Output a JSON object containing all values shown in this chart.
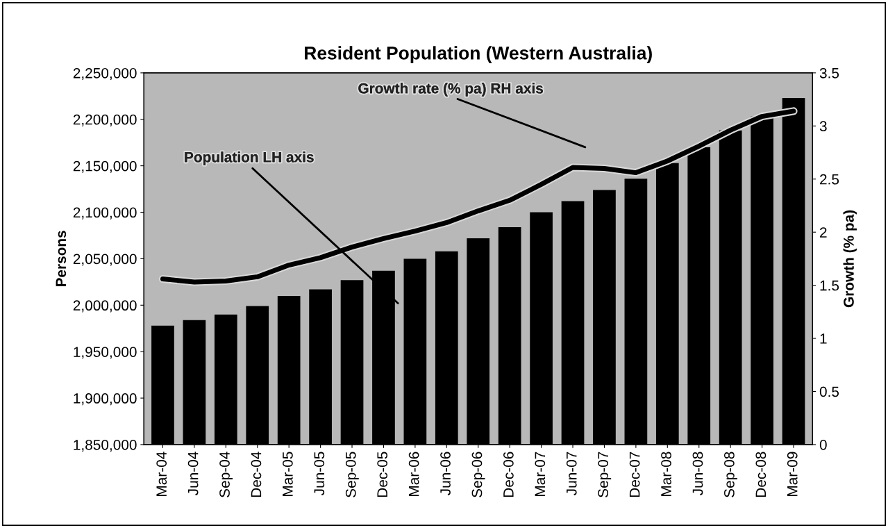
{
  "chart_data": {
    "type": "bar",
    "title": "Resident Population (Western Australia)",
    "ylabel": "Persons",
    "y2label": "Growth (% pa)",
    "categories": [
      "Mar-04",
      "Jun-04",
      "Sep-04",
      "Dec-04",
      "Mar-05",
      "Jun-05",
      "Sep-05",
      "Dec-05",
      "Mar-06",
      "Jun-06",
      "Sep-06",
      "Dec-06",
      "Mar-07",
      "Jun-07",
      "Sep-07",
      "Dec-07",
      "Mar-08",
      "Jun-08",
      "Sep-08",
      "Dec-08",
      "Mar-09"
    ],
    "series": [
      {
        "color": "#000000",
        "values": [
          1978000,
          1984000,
          1990000,
          1999000,
          2010000,
          2017000,
          2027000,
          2037000,
          2050000,
          2058000,
          2072000,
          2084000,
          2100000,
          2112000,
          2124000,
          2136000,
          2153000,
          2170000,
          2188000,
          2203000,
          2223000
        ]
      },
      {
        "type": "line",
        "axis": "y2",
        "color": "#000000",
        "values": [
          1.56,
          1.53,
          1.54,
          1.58,
          1.69,
          1.76,
          1.86,
          1.94,
          2.01,
          2.09,
          2.2,
          2.3,
          2.45,
          2.61,
          2.6,
          2.56,
          2.67,
          2.81,
          2.96,
          3.09,
          3.14
        ]
      }
    ],
    "annotations": [
      "Growth rate (% pa) RH axis",
      "Population LH axis"
    ],
    "ylim": [
      1850000,
      2250000
    ],
    "yticks": [
      {
        "value": 1850000,
        "label": "1,850,000"
      },
      {
        "value": 1900000,
        "label": "1,900,000"
      },
      {
        "value": 1950000,
        "label": "1,950,000"
      },
      {
        "value": 2000000,
        "label": "2,000,000"
      },
      {
        "value": 2050000,
        "label": "2,050,000"
      },
      {
        "value": 2100000,
        "label": "2,100,000"
      },
      {
        "value": 2150000,
        "label": "2,150,000"
      },
      {
        "value": 2200000,
        "label": "2,200,000"
      },
      {
        "value": 2250000,
        "label": "2,250,000"
      }
    ],
    "y2lim": [
      0,
      3.5
    ],
    "y2ticks": [
      0,
      0.5,
      1,
      1.5,
      2,
      2.5,
      3,
      3.5
    ],
    "grid": false,
    "marker": "none",
    "line_style": "solid"
  }
}
